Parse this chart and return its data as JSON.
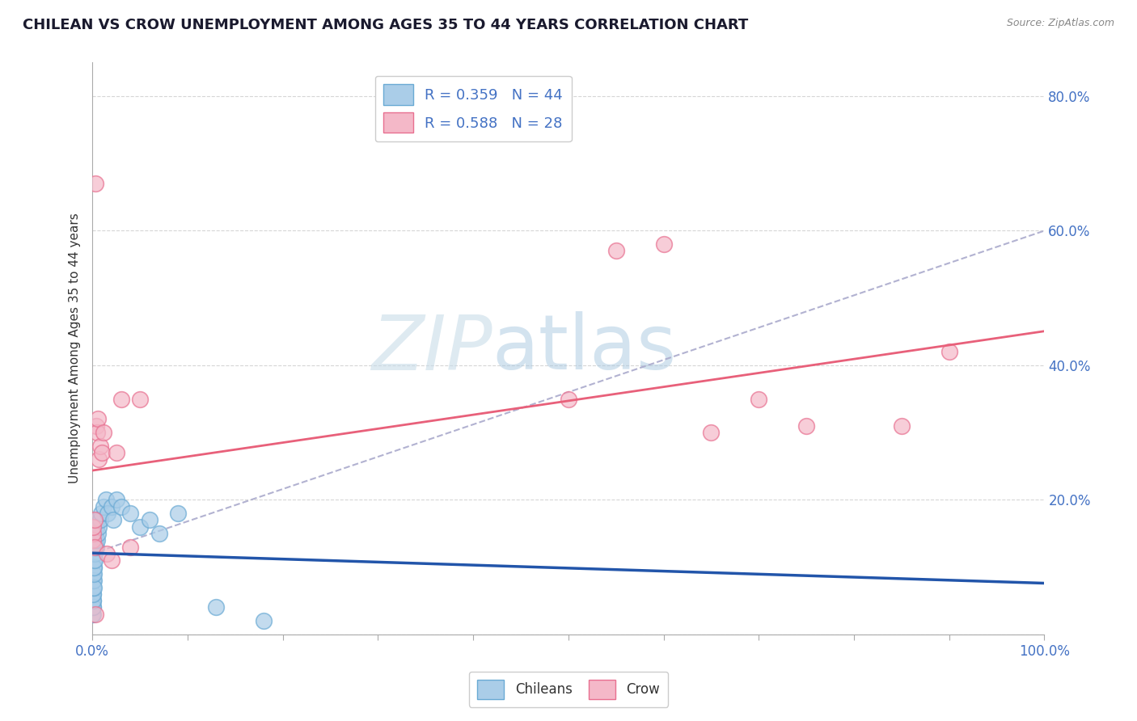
{
  "title": "CHILEAN VS CROW UNEMPLOYMENT AMONG AGES 35 TO 44 YEARS CORRELATION CHART",
  "source": "Source: ZipAtlas.com",
  "ylabel": "Unemployment Among Ages 35 to 44 years",
  "xlim": [
    0.0,
    1.0
  ],
  "ylim": [
    0.0,
    0.85
  ],
  "yticks": [
    0.0,
    0.2,
    0.4,
    0.6,
    0.8
  ],
  "ytick_labels": [
    "",
    "20.0%",
    "40.0%",
    "60.0%",
    "80.0%"
  ],
  "xtick_labels_show": [
    "0.0%",
    "",
    "",
    "",
    "",
    "",
    "",
    "",
    "",
    "",
    "100.0%"
  ],
  "legend_labels": [
    "R = 0.359   N = 44",
    "R = 0.588   N = 28"
  ],
  "chilean_color": "#aacde8",
  "crow_color": "#f4b8c8",
  "chilean_edge_color": "#6aaad4",
  "crow_edge_color": "#e87090",
  "chilean_line_color": "#2255aa",
  "crow_line_color": "#e8607a",
  "dashed_line_color": "#aaaacc",
  "background_color": "#ffffff",
  "grid_color": "#cccccc",
  "watermark_color": "#d8eaf5",
  "chilean_x": [
    0.0002,
    0.0003,
    0.0004,
    0.0005,
    0.0006,
    0.0007,
    0.0008,
    0.001,
    0.001,
    0.001,
    0.001,
    0.0012,
    0.0013,
    0.0015,
    0.0016,
    0.0017,
    0.0018,
    0.002,
    0.002,
    0.002,
    0.003,
    0.003,
    0.004,
    0.004,
    0.005,
    0.005,
    0.006,
    0.007,
    0.008,
    0.009,
    0.012,
    0.014,
    0.016,
    0.02,
    0.022,
    0.025,
    0.03,
    0.04,
    0.05,
    0.06,
    0.07,
    0.09,
    0.13,
    0.18
  ],
  "chilean_y": [
    0.03,
    0.05,
    0.04,
    0.06,
    0.03,
    0.04,
    0.05,
    0.06,
    0.07,
    0.08,
    0.09,
    0.1,
    0.08,
    0.07,
    0.09,
    0.11,
    0.1,
    0.12,
    0.13,
    0.11,
    0.14,
    0.15,
    0.13,
    0.16,
    0.14,
    0.17,
    0.15,
    0.16,
    0.17,
    0.18,
    0.19,
    0.2,
    0.18,
    0.19,
    0.17,
    0.2,
    0.19,
    0.18,
    0.16,
    0.17,
    0.15,
    0.18,
    0.04,
    0.02
  ],
  "crow_x": [
    0.001,
    0.001,
    0.001,
    0.002,
    0.002,
    0.003,
    0.003,
    0.004,
    0.005,
    0.006,
    0.007,
    0.008,
    0.01,
    0.012,
    0.015,
    0.02,
    0.025,
    0.03,
    0.04,
    0.05,
    0.5,
    0.55,
    0.6,
    0.65,
    0.7,
    0.75,
    0.85,
    0.9
  ],
  "crow_y": [
    0.14,
    0.15,
    0.16,
    0.13,
    0.17,
    0.03,
    0.67,
    0.31,
    0.3,
    0.32,
    0.26,
    0.28,
    0.27,
    0.3,
    0.12,
    0.11,
    0.27,
    0.35,
    0.13,
    0.35,
    0.35,
    0.57,
    0.58,
    0.3,
    0.35,
    0.31,
    0.31,
    0.42
  ]
}
